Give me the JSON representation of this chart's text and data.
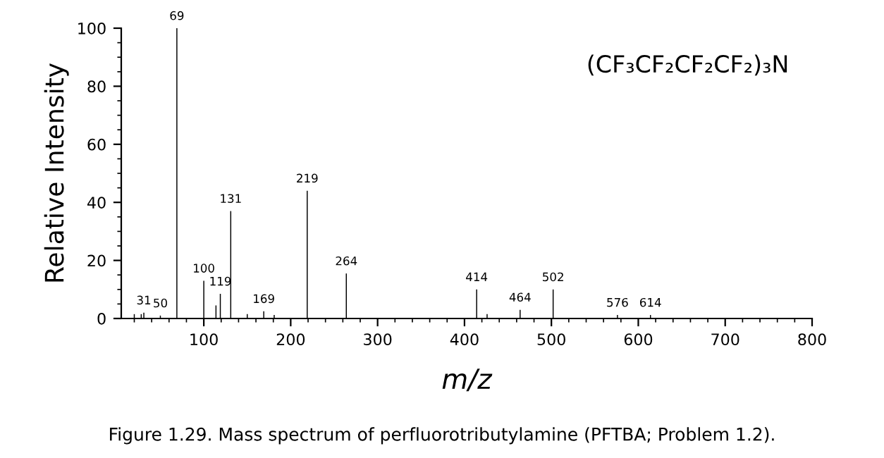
{
  "chart_data": {
    "type": "bar",
    "xlabel": "m/z",
    "ylabel": "Relative Intensity",
    "x": [
      20,
      28,
      31,
      50,
      69,
      100,
      114,
      119,
      131,
      150,
      169,
      181,
      219,
      264,
      414,
      426,
      464,
      502,
      576,
      614
    ],
    "values": [
      1.5,
      1.5,
      2,
      1,
      100,
      13,
      4.5,
      8.5,
      37,
      1.5,
      2.5,
      1.2,
      44,
      15.5,
      10,
      1.5,
      3,
      10,
      1.2,
      1.2
    ],
    "color": "#000000",
    "xlim": [
      5,
      800
    ],
    "xticks": [
      100,
      200,
      300,
      400,
      500,
      600,
      700,
      800
    ],
    "ylim": [
      0,
      100
    ],
    "yticks": [
      0,
      20,
      40,
      60,
      80,
      100
    ],
    "grid": false,
    "legend": false,
    "annotations": [
      {
        "text": "31",
        "x": 31,
        "y": 2
      },
      {
        "text": "50",
        "x": 50,
        "y": 1
      },
      {
        "text": "69",
        "x": 69,
        "y": 100
      },
      {
        "text": "100",
        "x": 100,
        "y": 13
      },
      {
        "text": "119",
        "x": 119,
        "y": 8.5
      },
      {
        "text": "131",
        "x": 131,
        "y": 37
      },
      {
        "text": "169",
        "x": 169,
        "y": 2.5
      },
      {
        "text": "219",
        "x": 219,
        "y": 44
      },
      {
        "text": "264",
        "x": 264,
        "y": 15.5
      },
      {
        "text": "414",
        "x": 414,
        "y": 10
      },
      {
        "text": "464",
        "x": 464,
        "y": 3
      },
      {
        "text": "502",
        "x": 502,
        "y": 10
      },
      {
        "text": "576",
        "x": 576,
        "y": 1.2
      },
      {
        "text": "614",
        "x": 614,
        "y": 1.2
      },
      "(CF₃CF₂CF₂CF₂)₃N",
      "Figure 1.29. Mass spectrum of perfluorotributylamine (PFTBA; Problem 1.2)."
    ]
  }
}
